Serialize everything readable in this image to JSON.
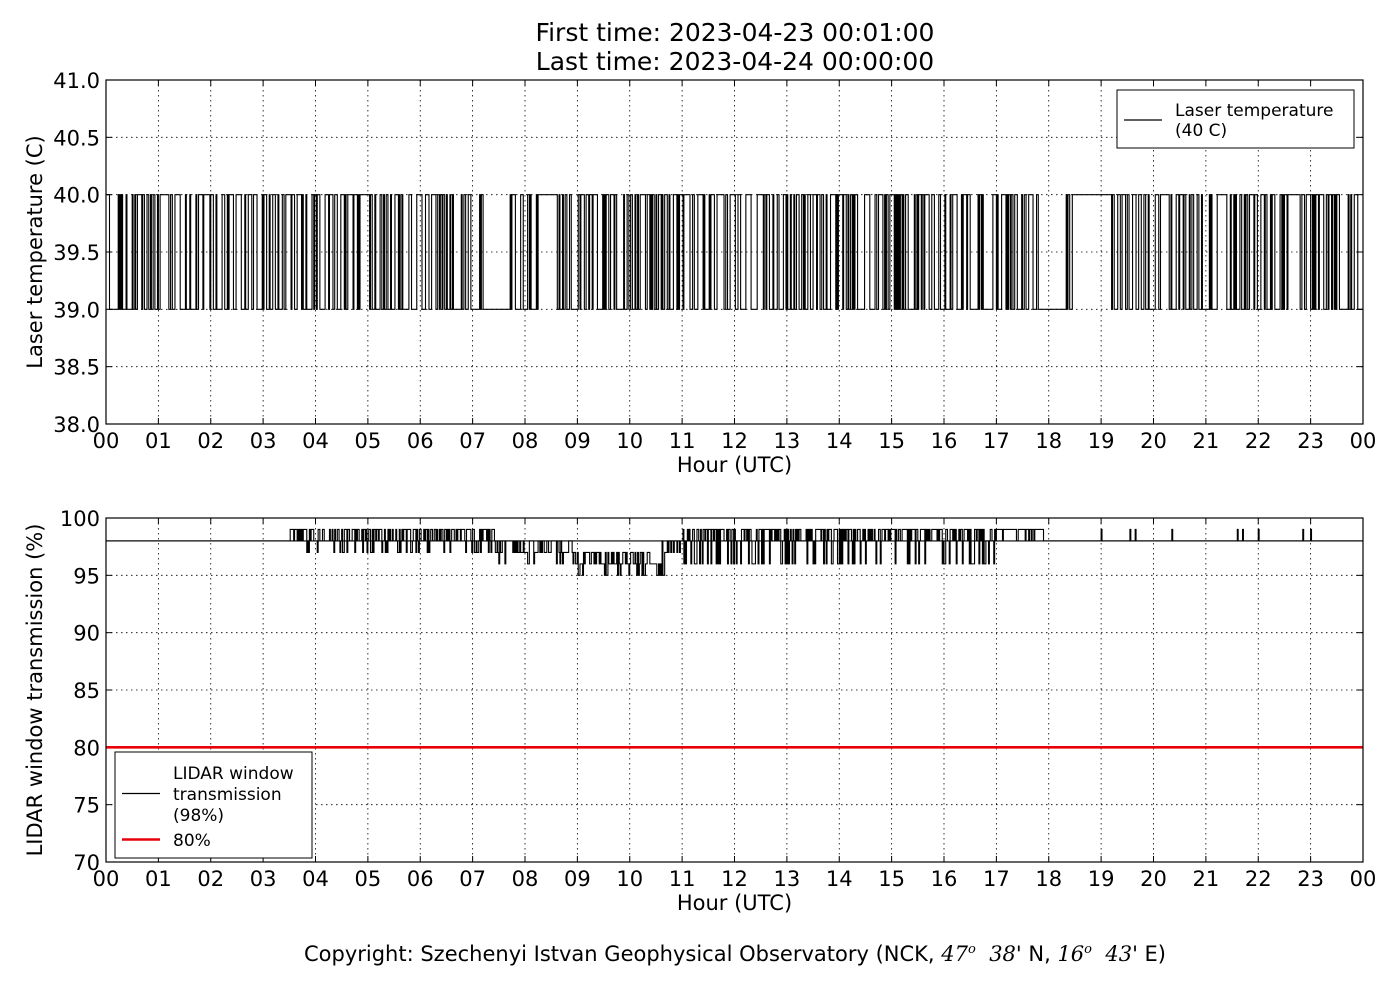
{
  "header": {
    "first_time": "First time: 2023-04-23 00:01:00",
    "last_time": "Last time: 2023-04-24 00:00:00"
  },
  "footer": {
    "prefix": "Copyright: Szechenyi Istvan Geophysical Observatory (NCK, ",
    "lat_deg": "47",
    "lat_sup": "o",
    "lat_min": "38' N, ",
    "lon_deg": "16",
    "lon_sup": "o",
    "lon_min": "43' E)"
  },
  "chart_data": [
    {
      "type": "line",
      "xlabel": "Hour (UTC)",
      "ylabel": "Laser temperature (C)",
      "xlim": [
        0,
        24
      ],
      "ylim": [
        38.0,
        41.0
      ],
      "x_ticks": [
        "00",
        "01",
        "02",
        "03",
        "04",
        "05",
        "06",
        "07",
        "08",
        "09",
        "10",
        "11",
        "12",
        "13",
        "14",
        "15",
        "16",
        "17",
        "18",
        "19",
        "20",
        "21",
        "22",
        "23",
        "00"
      ],
      "y_ticks": [
        "38.0",
        "38.5",
        "39.0",
        "39.5",
        "40.0",
        "40.5",
        "41.0"
      ],
      "grid": true,
      "legend_position": "top-right",
      "series": [
        {
          "name": "Laser temperature\n(40 C)",
          "color": "#000000",
          "levels": [
            39.0,
            40.0
          ],
          "x_start": 0.0167,
          "x_end": 24.0,
          "x_step_hours": 0.0167,
          "state_runs": [
            {
              "from": 0.0,
              "to": 0.3,
              "pattern": "rapid toggling"
            },
            {
              "from": 3.7,
              "to": 4.0,
              "pattern": "mostly 39.0 with toggling"
            },
            {
              "from": 7.2,
              "to": 7.6,
              "pattern": "39.0"
            },
            {
              "from": 8.3,
              "to": 8.6,
              "pattern": "40.0"
            },
            {
              "from": 18.5,
              "to": 19.2,
              "pattern": "40.0"
            },
            {
              "from": 17.8,
              "to": 18.3,
              "pattern": "39.0"
            }
          ]
        }
      ]
    },
    {
      "type": "line",
      "xlabel": "Hour (UTC)",
      "ylabel": "LIDAR window transmission (%)",
      "xlim": [
        0,
        24
      ],
      "ylim": [
        70,
        100
      ],
      "x_ticks": [
        "00",
        "01",
        "02",
        "03",
        "04",
        "05",
        "06",
        "07",
        "08",
        "09",
        "10",
        "11",
        "12",
        "13",
        "14",
        "15",
        "16",
        "17",
        "18",
        "19",
        "20",
        "21",
        "22",
        "23",
        "00"
      ],
      "y_ticks": [
        "70",
        "75",
        "80",
        "85",
        "90",
        "95",
        "100"
      ],
      "grid": true,
      "legend_position": "lower-left",
      "series": [
        {
          "name": "LIDAR window\ntransmission\n(98%)",
          "color": "#000000",
          "baseline": 98,
          "segments": [
            {
              "from": 0.0,
              "to": 3.5,
              "value_range": [
                98,
                98
              ]
            },
            {
              "from": 3.5,
              "to": 7.4,
              "value_range": [
                97,
                99
              ]
            },
            {
              "from": 7.4,
              "to": 8.9,
              "value_range": [
                96,
                98
              ]
            },
            {
              "from": 8.9,
              "to": 10.6,
              "value_range": [
                95,
                97
              ]
            },
            {
              "from": 10.6,
              "to": 11.0,
              "value_range": [
                95,
                98
              ]
            },
            {
              "from": 11.0,
              "to": 17.0,
              "value_range": [
                96,
                99
              ]
            },
            {
              "from": 17.0,
              "to": 17.9,
              "value_range": [
                98,
                99
              ]
            },
            {
              "from": 17.9,
              "to": 24.0,
              "value_range": [
                98,
                98
              ]
            }
          ],
          "spikes_to_99": [
            19.0,
            19.55,
            19.65,
            20.35,
            21.6,
            21.7,
            22.0,
            22.85,
            23.0
          ]
        },
        {
          "name": "80%",
          "color": "#e8000b",
          "values": [
            80,
            80
          ],
          "x": [
            0,
            24
          ]
        }
      ]
    }
  ]
}
